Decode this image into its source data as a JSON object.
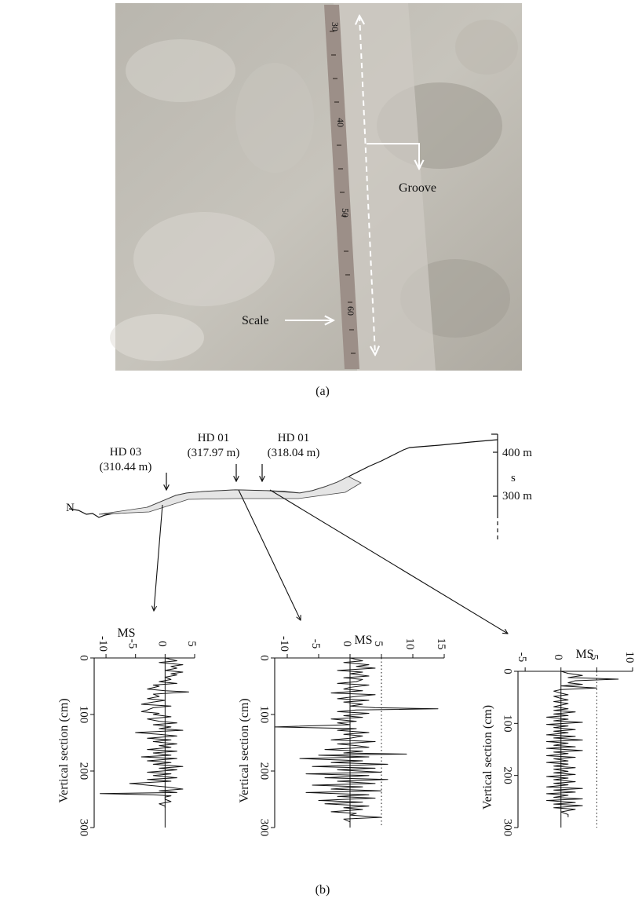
{
  "panel_a": {
    "caption": "(a)",
    "annotations": {
      "groove": "Groove",
      "scale": "Scale"
    },
    "ruler_marks": [
      "30",
      "40",
      "50",
      "60"
    ]
  },
  "panel_b": {
    "caption": "(b)",
    "north_label": "N",
    "elevation_scale": {
      "upper": "400 m",
      "middle": "s",
      "lower": "300 m"
    },
    "sites": [
      {
        "name": "HD 03",
        "elevation": "(310.44 m)"
      },
      {
        "name": "HD 01",
        "elevation": "(317.97 m)"
      },
      {
        "name": "HD 01",
        "elevation": "(318.04 m)"
      }
    ]
  },
  "chart_data": [
    {
      "type": "line",
      "title": "MS",
      "xlabel": "Vertical section (cm)",
      "ylabel": "",
      "xlim": [
        0,
        300
      ],
      "ylim": [
        -12,
        5
      ],
      "x_ticks": [
        "0",
        "100",
        "200",
        "300"
      ],
      "y_ticks": [
        "-10",
        "-5",
        "0",
        "5"
      ],
      "reference_line": null,
      "series": [
        {
          "x": [
            0,
            5,
            8,
            12,
            15,
            18,
            22,
            25,
            28,
            30,
            34,
            38,
            42,
            45,
            48,
            50,
            55,
            58,
            60,
            64,
            68,
            72,
            75,
            78,
            82,
            85,
            88,
            92,
            95,
            98,
            100,
            104,
            108,
            112,
            115,
            118,
            122,
            125,
            128,
            132,
            135,
            138,
            142,
            145,
            148,
            152,
            155,
            158,
            162,
            165,
            168,
            172,
            175,
            178,
            182,
            185,
            188,
            192,
            195,
            198,
            202,
            205,
            208,
            212,
            215,
            218,
            222,
            225,
            228,
            232,
            235,
            238,
            240,
            242,
            244,
            246,
            250,
            254,
            258,
            262,
            265
          ],
          "values": [
            0,
            2,
            -1,
            3,
            1,
            2,
            0,
            3,
            1,
            2,
            0,
            1,
            -1,
            2,
            -2,
            -1,
            -3,
            0,
            4,
            -2,
            -1,
            -3,
            0,
            -2,
            -4,
            1,
            -2,
            -3,
            -4,
            -1,
            -2,
            1,
            -3,
            -1,
            2,
            -2,
            1,
            -1,
            3,
            -5,
            -1,
            2,
            -3,
            1,
            -2,
            2,
            -1,
            1,
            -3,
            2,
            -2,
            1,
            -4,
            2,
            -3,
            1,
            -2,
            3,
            -1,
            2,
            -3,
            1,
            -2,
            2,
            -3,
            1,
            -6,
            -3,
            0,
            3,
            -1,
            2,
            -11,
            -2,
            1,
            0,
            0,
            1,
            -1,
            0,
            0
          ]
        }
      ]
    },
    {
      "type": "line",
      "title": "MS",
      "xlabel": "Vertical section (cm)",
      "ylabel": "",
      "xlim": [
        0,
        300
      ],
      "ylim": [
        -12,
        15
      ],
      "x_ticks": [
        "0",
        "100",
        "200",
        "300"
      ],
      "y_ticks": [
        "-10",
        "-5",
        "0",
        "5",
        "10",
        "15"
      ],
      "reference_line": 5,
      "series": [
        {
          "x": [
            0,
            5,
            8,
            12,
            15,
            18,
            22,
            25,
            28,
            32,
            35,
            38,
            42,
            45,
            48,
            52,
            55,
            58,
            62,
            65,
            68,
            72,
            75,
            78,
            82,
            85,
            88,
            90,
            92,
            95,
            98,
            102,
            105,
            108,
            112,
            115,
            118,
            122,
            125,
            128,
            132,
            135,
            138,
            142,
            145,
            148,
            152,
            155,
            158,
            162,
            165,
            168,
            170,
            172,
            175,
            178,
            182,
            185,
            188,
            192,
            195,
            198,
            202,
            205,
            208,
            212,
            215,
            218,
            222,
            225,
            228,
            232,
            235,
            238,
            242,
            245,
            248,
            252,
            255,
            258,
            262,
            265,
            268,
            272,
            275,
            278,
            282,
            285,
            290
          ],
          "values": [
            0,
            2,
            -1,
            3,
            1,
            4,
            -2,
            2,
            0,
            3,
            -1,
            2,
            1,
            -2,
            3,
            0,
            -1,
            2,
            -3,
            4,
            1,
            -2,
            3,
            -1,
            2,
            0,
            4,
            14,
            1,
            -2,
            3,
            -1,
            2,
            -3,
            1,
            -2,
            0,
            -12,
            1,
            -2,
            3,
            -1,
            2,
            0,
            -3,
            4,
            -2,
            1,
            3,
            -4,
            2,
            -1,
            9,
            -5,
            3,
            -8,
            2,
            -3,
            6,
            -6,
            4,
            -2,
            5,
            -7,
            3,
            -4,
            6,
            -2,
            4,
            -6,
            2,
            -3,
            5,
            -7,
            3,
            -2,
            4,
            -5,
            2,
            -4,
            3,
            -1,
            2,
            -3,
            1,
            0,
            5,
            -1,
            0
          ]
        }
      ]
    },
    {
      "type": "line",
      "title": "MS",
      "xlabel": "Vertical section (cm)",
      "ylabel": "",
      "xlim": [
        0,
        300
      ],
      "ylim": [
        -6,
        10
      ],
      "x_ticks": [
        "0",
        "100",
        "200",
        "300"
      ],
      "y_ticks": [
        "-5",
        "0",
        "5",
        "10"
      ],
      "reference_line": 5,
      "series": [
        {
          "x": [
            0,
            4,
            8,
            12,
            15,
            18,
            22,
            25,
            28,
            32,
            35,
            38,
            42,
            45,
            48,
            52,
            55,
            58,
            62,
            65,
            68,
            72,
            75,
            78,
            82,
            85,
            88,
            92,
            95,
            98,
            102,
            105,
            108,
            112,
            115,
            118,
            122,
            125,
            128,
            132,
            135,
            138,
            142,
            145,
            148,
            152,
            155,
            158,
            162,
            165,
            168,
            172,
            175,
            178,
            182,
            185,
            188,
            192,
            195,
            198,
            202,
            205,
            208,
            212,
            215,
            218,
            222,
            225,
            228,
            232,
            235,
            238,
            242,
            245,
            248,
            252,
            255,
            258,
            262,
            265,
            270,
            275,
            280
          ],
          "values": [
            0,
            1,
            3,
            1,
            8,
            2,
            1,
            3,
            0,
            5,
            0,
            -1,
            0,
            1,
            -1,
            0,
            1,
            -1,
            1,
            0,
            -1,
            1,
            -1,
            2,
            -1,
            1,
            -2,
            1,
            -1,
            3,
            -2,
            1,
            -1,
            2,
            -1,
            1,
            -2,
            2,
            -1,
            3,
            -2,
            1,
            -1,
            2,
            -2,
            3,
            -1,
            1,
            -2,
            2,
            -1,
            1,
            -2,
            1,
            -1,
            2,
            -1,
            1,
            -1,
            2,
            -2,
            1,
            -1,
            2,
            -1,
            1,
            -2,
            3,
            -1,
            2,
            -2,
            1,
            -1,
            3,
            -2,
            2,
            -1,
            3,
            -1,
            2,
            0,
            1,
            1
          ]
        }
      ]
    }
  ]
}
